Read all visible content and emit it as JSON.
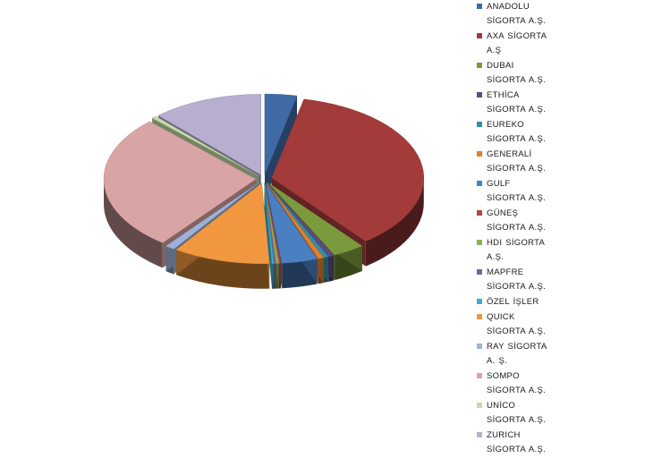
{
  "chart_data": {
    "type": "pie",
    "style": "3d-exploded",
    "legend_position": "right",
    "series": [
      {
        "name": "ANADOLU SİGORTA A.Ş.",
        "value": 3.4,
        "color": "#3f6aa5"
      },
      {
        "name": "AXA SİGORTA A.Ş",
        "value": 36.0,
        "color": "#a33b3b"
      },
      {
        "name": "DUBAI SİGORTA A.Ş.",
        "value": 3.4,
        "color": "#7b9a3d"
      },
      {
        "name": "ETHİCA SİGORTA A.Ş.",
        "value": 0.6,
        "color": "#5f4a80"
      },
      {
        "name": "EUREKO SİGORTA A.Ş.",
        "value": 0.5,
        "color": "#2f8fa6"
      },
      {
        "name": "GENERALİ SİGORTA A.Ş.",
        "value": 0.6,
        "color": "#e07f2e"
      },
      {
        "name": "GULF SİGORTA A.Ş.",
        "value": 3.8,
        "color": "#4a7fc1"
      },
      {
        "name": "GÜNEŞ SİGORTA A.Ş.",
        "value": 0.2,
        "color": "#b84444"
      },
      {
        "name": "HDI SİGORTA A.Ş.",
        "value": 0.3,
        "color": "#8fb04e"
      },
      {
        "name": "MAPFRE SİGORTA A.Ş.",
        "value": 0.2,
        "color": "#7b5ea6"
      },
      {
        "name": "ÖZEL İŞLER",
        "value": 0.2,
        "color": "#38b0c9"
      },
      {
        "name": "QUICK SİGORTA A.Ş.",
        "value": 10.3,
        "color": "#f0973f"
      },
      {
        "name": "RAY SİGORTA A. Ş.",
        "value": 1.0,
        "color": "#9db2d6"
      },
      {
        "name": "SOMPO SİGORTA A.Ş.",
        "value": 27.2,
        "color": "#d9a4a4"
      },
      {
        "name": "UNİCO SİGORTA A.Ş.",
        "value": 0.5,
        "color": "#c5dba8"
      },
      {
        "name": "ZURICH SİGORTA A.Ş.",
        "value": 11.8,
        "color": "#b8aed0"
      }
    ]
  }
}
